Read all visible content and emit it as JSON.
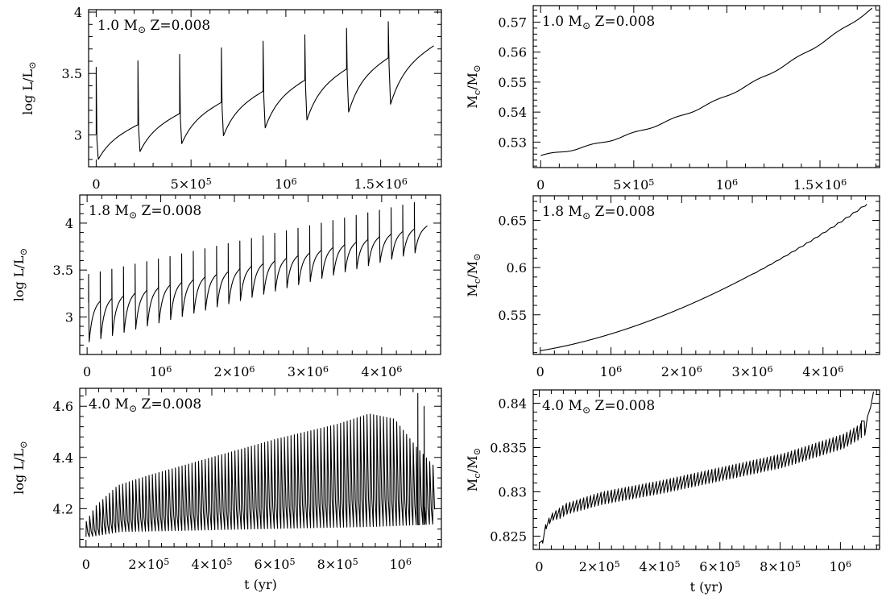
{
  "figure": {
    "panels": [
      {
        "label": "1.0 M⊙ Z=0.008",
        "chart_data": {
          "type": "line",
          "xlabel": "",
          "ylabel": "log L/L⊙",
          "xlim": [
            -40000,
            1820000
          ],
          "ylim": [
            2.74,
            4.02
          ],
          "xticks": [
            0,
            500000,
            1000000,
            1500000
          ],
          "xtick_labels": [
            "0",
            "5×10⁵",
            "10⁶",
            "1.5×10⁶"
          ],
          "yticks": [
            3,
            3.5,
            4
          ],
          "ytick_labels": [
            "3",
            "3.5",
            "4"
          ],
          "series": [
            {
              "values": {
                "kind": "pulses",
                "t_start": 0,
                "t_end": 1780000,
                "n_pulses": 8,
                "t_first_pulse": 0,
                "period": 220000,
                "quiescent_start": 3.0,
                "quiescent_end": 3.74,
                "dip_depth": 0.2,
                "dip_end": 0.42,
                "spike_height": 0.55,
                "spike_end": 0.24,
                "recovery_fraction": 0.8,
                "rise_time": 0.3,
                "decay_time": 0.05
              }
            }
          ]
        }
      },
      {
        "label": "1.0 M⊙ Z=0.008",
        "chart_data": {
          "type": "line",
          "xlabel": "",
          "ylabel": "Mc/M⊙",
          "xlim": [
            -40000,
            1820000
          ],
          "ylim": [
            0.5215,
            0.5755
          ],
          "xticks": [
            0,
            500000,
            1000000,
            1500000
          ],
          "xtick_labels": [
            "0",
            "5×10⁵",
            "10⁶",
            "1.5×10⁶"
          ],
          "yticks": [
            0.53,
            0.54,
            0.55,
            0.56,
            0.57
          ],
          "ytick_labels": [
            "0.53",
            "0.54",
            "0.55",
            "0.56",
            "0.57"
          ],
          "series": [
            {
              "values": {
                "kind": "core",
                "t_start": 0,
                "t_end": 1780000,
                "y_start": 0.5255,
                "y_end": 0.5745,
                "curve_power": 1.95,
                "pulses_from": 0,
                "pulse_period": 220000,
                "step_amplitude": 0.0006,
                "saw_amplitude": 0
              }
            }
          ]
        }
      },
      {
        "label": "1.8 M⊙ Z=0.008",
        "chart_data": {
          "type": "line",
          "xlabel": "",
          "ylabel": "log L/L⊙",
          "xlim": [
            -100000,
            4800000
          ],
          "ylim": [
            2.6,
            4.3
          ],
          "xticks": [
            0,
            1000000,
            2000000,
            3000000,
            4000000
          ],
          "xtick_labels": [
            "0",
            "10⁶",
            "2×10⁶",
            "3×10⁶",
            "4×10⁶"
          ],
          "yticks": [
            3,
            3.5,
            4
          ],
          "ytick_labels": [
            "3",
            "3.5",
            "4"
          ],
          "series": [
            {
              "values": {
                "kind": "pulses",
                "t_start": 0,
                "t_end": 4620000,
                "n_pulses": 29,
                "t_first_pulse": 20000,
                "period": 158000,
                "quiescent_start": 3.15,
                "quiescent_end": 3.98,
                "dip_depth": 0.42,
                "dip_end": 0.26,
                "spike_height": 0.3,
                "spike_end": 0.27,
                "recovery_fraction": 0.88,
                "rise_time": 0.3,
                "decay_time": 0.05
              }
            }
          ]
        }
      },
      {
        "label": "1.8 M⊙ Z=0.008",
        "chart_data": {
          "type": "line",
          "xlabel": "",
          "ylabel": "Mc/M⊙",
          "xlim": [
            -100000,
            4800000
          ],
          "ylim": [
            0.508,
            0.676
          ],
          "xticks": [
            0,
            1000000,
            2000000,
            3000000,
            4000000
          ],
          "xtick_labels": [
            "0",
            "10⁶",
            "2×10⁶",
            "3×10⁶",
            "4×10⁶"
          ],
          "yticks": [
            0.55,
            0.6,
            0.65
          ],
          "ytick_labels": [
            "0.55",
            "0.6",
            "0.65"
          ],
          "series": [
            {
              "values": {
                "kind": "core",
                "t_start": 0,
                "t_end": 4620000,
                "y_start": 0.512,
                "y_end": 0.668,
                "curve_power": 1.85,
                "pulses_from": 3000000,
                "pulse_period": 110000,
                "step_amplitude": 0,
                "saw_amplitude": 0.0035
              }
            }
          ]
        }
      },
      {
        "label": "4.0 M⊙ Z=0.008",
        "chart_data": {
          "type": "line",
          "xlabel": "t (yr)",
          "ylabel": "log L/L⊙",
          "xlim": [
            -20000,
            1130000
          ],
          "ylim": [
            4.05,
            4.67
          ],
          "xticks": [
            0,
            200000,
            400000,
            600000,
            800000,
            1000000
          ],
          "xtick_labels": [
            "0",
            "2×10⁵",
            "4×10⁵",
            "6×10⁵",
            "8×10⁵",
            "10⁶"
          ],
          "yticks": [
            4.2,
            4.4,
            4.6
          ],
          "ytick_labels": [
            "4.2",
            "4.4",
            "4.6"
          ],
          "series": [
            {
              "values": {
                "kind": "oscillation",
                "t_start": 0,
                "t_end": 1110000,
                "period": 10500,
                "n_skip_outline": 1,
                "upper": [
                  [
                    0,
                    4.15
                  ],
                  [
                    30000,
                    4.21
                  ],
                  [
                    100000,
                    4.29
                  ],
                  [
                    200000,
                    4.33
                  ],
                  [
                    400000,
                    4.4
                  ],
                  [
                    600000,
                    4.47
                  ],
                  [
                    800000,
                    4.53
                  ],
                  [
                    900000,
                    4.57
                  ],
                  [
                    980000,
                    4.55
                  ],
                  [
                    1050000,
                    4.44
                  ],
                  [
                    1110000,
                    4.36
                  ]
                ],
                "lower": [
                  [
                    0,
                    4.09
                  ],
                  [
                    100000,
                    4.11
                  ],
                  [
                    500000,
                    4.12
                  ],
                  [
                    900000,
                    4.13
                  ],
                  [
                    1110000,
                    4.14
                  ]
                ],
                "spikes": [
                  [
                    1055000,
                    4.65
                  ],
                  [
                    1075000,
                    4.6
                  ]
                ]
              }
            }
          ]
        }
      },
      {
        "label": "4.0 M⊙ Z=0.008",
        "chart_data": {
          "type": "line",
          "xlabel": "t (yr)",
          "ylabel": "Mc/M⊙",
          "xlim": [
            -20000,
            1130000
          ],
          "ylim": [
            0.8235,
            0.8415
          ],
          "xticks": [
            0,
            200000,
            400000,
            600000,
            800000,
            1000000
          ],
          "xtick_labels": [
            "0",
            "2×10⁵",
            "4×10⁵",
            "6×10⁵",
            "8×10⁵",
            "10⁶"
          ],
          "yticks": [
            0.825,
            0.83,
            0.835,
            0.84
          ],
          "ytick_labels": [
            "0.825",
            "0.83",
            "0.835",
            "0.84"
          ],
          "series": [
            {
              "values": {
                "kind": "sawtooth",
                "t_start": 0,
                "t_end": 1110000,
                "period": 11500,
                "upper": [
                  [
                    0,
                    0.8245
                  ],
                  [
                    10000,
                    0.8262
                  ],
                  [
                    30000,
                    0.8275
                  ],
                  [
                    80000,
                    0.8287
                  ],
                  [
                    200000,
                    0.83
                  ],
                  [
                    400000,
                    0.8313
                  ],
                  [
                    600000,
                    0.8328
                  ],
                  [
                    800000,
                    0.8343
                  ],
                  [
                    1000000,
                    0.8365
                  ],
                  [
                    1050000,
                    0.8375
                  ],
                  [
                    1070000,
                    0.838
                  ]
                ],
                "amplitude": [
                  [
                    0,
                    0.0003
                  ],
                  [
                    60000,
                    0.0012
                  ],
                  [
                    200000,
                    0.0014
                  ],
                  [
                    1070000,
                    0.0016
                  ]
                ],
                "tail": [
                  [
                    1070000,
                    0.838
                  ],
                  [
                    1090000,
                    0.8385
                  ],
                  [
                    1100000,
                    0.8395
                  ],
                  [
                    1110000,
                    0.8413
                  ]
                ]
              }
            }
          ]
        }
      }
    ]
  }
}
